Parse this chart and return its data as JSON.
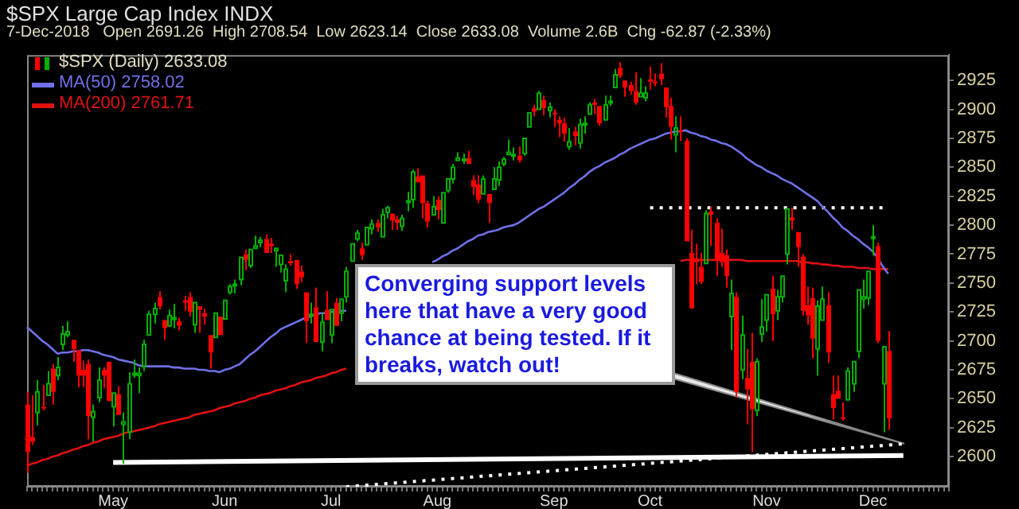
{
  "chart_data": {
    "type": "candlestick",
    "title": "$SPX Large Cap Index INDX",
    "subtitle": "7-Dec-2018   Open 2691.26  High 2708.54  Low 2623.14  Close 2633.08  Volume 2.6B  Chg -62.87 (-2.33%)",
    "annotations": [
      "Converging support levels here that have a very good chance at being tested. If it breaks, watch out!"
    ],
    "legend": "top left",
    "ylim": [
      2574,
      2947
    ],
    "yticks": [
      2600,
      2625,
      2650,
      2675,
      2700,
      2725,
      2750,
      2775,
      2800,
      2825,
      2850,
      2875,
      2900,
      2925
    ],
    "categories": [
      null,
      null,
      null,
      null,
      null,
      null,
      null,
      null,
      null,
      null,
      null,
      null,
      null,
      null,
      null,
      null,
      null,
      "May",
      null,
      null,
      null,
      null,
      null,
      null,
      null,
      null,
      null,
      null,
      null,
      null,
      null,
      null,
      null,
      null,
      null,
      null,
      null,
      null,
      null,
      "Jun",
      null,
      null,
      null,
      null,
      null,
      null,
      null,
      null,
      null,
      null,
      null,
      null,
      null,
      null,
      null,
      null,
      null,
      null,
      null,
      null,
      "Jul",
      null,
      null,
      null,
      null,
      null,
      null,
      null,
      null,
      null,
      null,
      null,
      null,
      null,
      null,
      null,
      null,
      null,
      null,
      null,
      null,
      "Aug",
      null,
      null,
      null,
      null,
      null,
      null,
      null,
      null,
      null,
      null,
      null,
      null,
      null,
      null,
      null,
      null,
      null,
      null,
      null,
      null,
      null,
      null,
      "Sep",
      null,
      null,
      null,
      null,
      null,
      null,
      null,
      null,
      null,
      null,
      null,
      null,
      null,
      null,
      null,
      null,
      null,
      null,
      "Oct",
      null,
      null,
      null,
      null,
      null,
      null,
      null,
      null,
      null,
      null,
      null,
      null,
      null,
      null,
      null,
      null,
      null,
      null,
      null,
      null,
      null,
      null,
      "Nov",
      null,
      null,
      null,
      null,
      null,
      null,
      null,
      null,
      null,
      null,
      null,
      null,
      null,
      null,
      null,
      null,
      null,
      null,
      null,
      null,
      "Dec",
      null,
      null,
      null,
      null,
      null,
      null,
      null,
      null,
      null,
      null,
      null,
      null,
      null,
      null,
      null
    ],
    "series": [
      {
        "name": "$SPX (Daily) 2633.08",
        "type": "candlestick",
        "ohlc": [
          [
            2645,
            2656,
            2586,
            2604
          ],
          [
            2617,
            2653,
            2610,
            2613
          ],
          [
            2638,
            2666,
            2627,
            2656
          ],
          [
            2643,
            2662,
            2640,
            2642
          ],
          [
            2653,
            2674,
            2652,
            2663
          ],
          [
            2676,
            2680,
            2645,
            2656
          ],
          [
            2670,
            2686,
            2666,
            2677
          ],
          [
            2697,
            2713,
            2692,
            2706
          ],
          [
            2705,
            2717,
            2703,
            2708
          ],
          [
            2701,
            2702,
            2682,
            2693
          ],
          [
            2692,
            2693,
            2660,
            2670
          ],
          [
            2675,
            2683,
            2660,
            2670
          ],
          [
            2680,
            2684,
            2615,
            2635
          ],
          [
            2634,
            2645,
            2613,
            2639
          ],
          [
            2651,
            2677,
            2647,
            2666
          ],
          [
            2675,
            2677,
            2659,
            2670
          ],
          [
            2682,
            2682,
            2648,
            2648
          ],
          [
            2643,
            2655,
            2626,
            2655
          ],
          [
            2654,
            2661,
            2636,
            2636
          ],
          [
            2628,
            2638,
            2594,
            2630
          ],
          [
            2621,
            2673,
            2615,
            2663
          ],
          [
            2671,
            2684,
            2668,
            2672
          ],
          [
            2670,
            2677,
            2655,
            2672
          ],
          [
            2678,
            2701,
            2674,
            2697
          ],
          [
            2705,
            2726,
            2705,
            2723
          ],
          [
            2723,
            2733,
            2715,
            2728
          ],
          [
            2738,
            2743,
            2727,
            2730
          ],
          [
            2718,
            2718,
            2701,
            2711
          ],
          [
            2713,
            2727,
            2712,
            2722
          ],
          [
            2720,
            2732,
            2711,
            2720
          ],
          [
            2717,
            2720,
            2709,
            2713
          ],
          [
            2735,
            2739,
            2726,
            2733
          ],
          [
            2738,
            2742,
            2721,
            2725
          ],
          [
            2714,
            2733,
            2707,
            2733
          ],
          [
            2730,
            2731,
            2707,
            2727
          ],
          [
            2724,
            2728,
            2714,
            2721
          ],
          [
            2705,
            2706,
            2676,
            2690
          ],
          [
            2703,
            2725,
            2703,
            2724
          ],
          [
            2721,
            2722,
            2704,
            2705
          ],
          [
            2719,
            2736,
            2719,
            2735
          ],
          [
            2742,
            2749,
            2740,
            2747
          ],
          [
            2749,
            2753,
            2741,
            2749
          ],
          [
            2753,
            2773,
            2748,
            2772
          ],
          [
            2775,
            2779,
            2761,
            2770
          ],
          [
            2765,
            2779,
            2763,
            2779
          ],
          [
            2780,
            2791,
            2780,
            2782
          ],
          [
            2785,
            2790,
            2781,
            2787
          ],
          [
            2788,
            2792,
            2775,
            2776
          ],
          [
            2784,
            2789,
            2776,
            2782
          ],
          [
            2778,
            2781,
            2764,
            2780
          ],
          [
            2766,
            2775,
            2759,
            2774
          ],
          [
            2752,
            2766,
            2742,
            2762
          ],
          [
            2769,
            2775,
            2765,
            2767
          ],
          [
            2770,
            2770,
            2745,
            2749
          ],
          [
            2760,
            2765,
            2751,
            2755
          ],
          [
            2742,
            2742,
            2698,
            2717
          ],
          [
            2722,
            2733,
            2715,
            2723
          ],
          [
            2729,
            2746,
            2699,
            2699
          ],
          [
            2699,
            2724,
            2691,
            2716
          ],
          [
            2727,
            2743,
            2718,
            2718
          ],
          [
            2705,
            2727,
            2698,
            2727
          ],
          [
            2733,
            2737,
            2713,
            2713
          ],
          [
            2724,
            2737,
            2717,
            2736
          ],
          [
            2738,
            2764,
            2733,
            2760
          ],
          [
            2769,
            2785,
            2768,
            2784
          ],
          [
            2788,
            2796,
            2786,
            2793
          ],
          [
            2780,
            2785,
            2770,
            2774
          ],
          [
            2783,
            2799,
            2783,
            2798
          ],
          [
            2797,
            2805,
            2792,
            2801
          ],
          [
            2802,
            2805,
            2794,
            2798
          ],
          [
            2790,
            2814,
            2789,
            2809
          ],
          [
            2811,
            2817,
            2806,
            2815
          ],
          [
            2810,
            2810,
            2796,
            2804
          ],
          [
            2805,
            2808,
            2796,
            2802
          ],
          [
            2799,
            2809,
            2795,
            2806
          ],
          [
            2820,
            2829,
            2812,
            2821
          ],
          [
            2822,
            2848,
            2815,
            2846
          ],
          [
            2842,
            2849,
            2836,
            2837
          ],
          [
            2843,
            2844,
            2806,
            2819
          ],
          [
            2819,
            2821,
            2798,
            2803
          ],
          [
            2809,
            2825,
            2808,
            2816
          ],
          [
            2822,
            2825,
            2805,
            2813
          ],
          [
            2802,
            2829,
            2801,
            2828
          ],
          [
            2830,
            2840,
            2828,
            2840
          ],
          [
            2840,
            2853,
            2836,
            2850
          ],
          [
            2856,
            2863,
            2855,
            2858
          ],
          [
            2856,
            2862,
            2853,
            2857
          ],
          [
            2858,
            2864,
            2852,
            2853
          ],
          [
            2839,
            2843,
            2826,
            2833
          ],
          [
            2835,
            2843,
            2819,
            2822
          ],
          [
            2827,
            2843,
            2826,
            2840
          ],
          [
            2827,
            2827,
            2802,
            2819
          ],
          [
            2831,
            2850,
            2831,
            2840
          ],
          [
            2839,
            2855,
            2834,
            2850
          ],
          [
            2853,
            2859,
            2851,
            2857
          ],
          [
            2861,
            2874,
            2860,
            2863
          ],
          [
            2860,
            2867,
            2856,
            2861
          ],
          [
            2860,
            2868,
            2854,
            2856
          ],
          [
            2862,
            2876,
            2860,
            2875
          ],
          [
            2885,
            2898,
            2885,
            2897
          ],
          [
            2901,
            2904,
            2894,
            2898
          ],
          [
            2900,
            2916,
            2899,
            2914
          ],
          [
            2908,
            2912,
            2895,
            2901
          ],
          [
            2899,
            2906,
            2893,
            2902
          ],
          [
            2897,
            2900,
            2885,
            2896
          ],
          [
            2891,
            2894,
            2876,
            2888
          ],
          [
            2888,
            2893,
            2872,
            2879
          ],
          [
            2868,
            2884,
            2865,
            2872
          ],
          [
            2881,
            2885,
            2869,
            2877
          ],
          [
            2871,
            2892,
            2866,
            2887
          ],
          [
            2888,
            2894,
            2879,
            2888
          ],
          [
            2896,
            2906,
            2896,
            2904
          ],
          [
            2906,
            2909,
            2896,
            2904
          ],
          [
            2903,
            2904,
            2886,
            2888
          ],
          [
            2891,
            2912,
            2890,
            2904
          ],
          [
            2906,
            2912,
            2903,
            2907
          ],
          [
            2919,
            2935,
            2919,
            2930
          ],
          [
            2936,
            2941,
            2927,
            2929
          ],
          [
            2925,
            2926,
            2911,
            2919
          ],
          [
            2921,
            2924,
            2913,
            2916
          ],
          [
            2916,
            2932,
            2904,
            2906
          ],
          [
            2911,
            2927,
            2910,
            2914
          ],
          [
            2910,
            2920,
            2907,
            2914
          ],
          [
            2926,
            2937,
            2917,
            2924
          ],
          [
            2924,
            2931,
            2920,
            2923
          ],
          [
            2931,
            2940,
            2921,
            2926
          ],
          [
            2919,
            2919,
            2893,
            2902
          ],
          [
            2903,
            2910,
            2874,
            2885
          ],
          [
            2878,
            2894,
            2863,
            2884
          ],
          [
            2882,
            2894,
            2873,
            2881
          ],
          [
            2873,
            2875,
            2785,
            2786
          ],
          [
            2776,
            2796,
            2727,
            2728
          ],
          [
            2771,
            2784,
            2749,
            2768
          ],
          [
            2764,
            2776,
            2749,
            2751
          ],
          [
            2767,
            2813,
            2767,
            2810
          ],
          [
            2812,
            2816,
            2782,
            2809
          ],
          [
            2802,
            2806,
            2756,
            2769
          ],
          [
            2776,
            2797,
            2764,
            2768
          ],
          [
            2774,
            2779,
            2746,
            2756
          ],
          [
            2721,
            2753,
            2692,
            2741
          ],
          [
            2738,
            2742,
            2651,
            2656
          ],
          [
            2675,
            2722,
            2667,
            2705
          ],
          [
            2668,
            2693,
            2628,
            2658
          ],
          [
            2682,
            2707,
            2604,
            2641
          ],
          [
            2640,
            2685,
            2635,
            2682
          ],
          [
            2706,
            2736,
            2699,
            2712
          ],
          [
            2718,
            2741,
            2708,
            2740
          ],
          [
            2745,
            2756,
            2700,
            2723
          ],
          [
            2726,
            2744,
            2718,
            2738
          ],
          [
            2738,
            2757,
            2733,
            2756
          ],
          [
            2775,
            2815,
            2766,
            2814
          ],
          [
            2806,
            2815,
            2796,
            2806
          ],
          [
            2794,
            2794,
            2764,
            2781
          ],
          [
            2773,
            2775,
            2722,
            2726
          ],
          [
            2731,
            2747,
            2714,
            2722
          ],
          [
            2737,
            2746,
            2685,
            2702
          ],
          [
            2693,
            2735,
            2670,
            2730
          ],
          [
            2718,
            2747,
            2717,
            2736
          ],
          [
            2731,
            2742,
            2681,
            2690
          ],
          [
            2654,
            2670,
            2632,
            2642
          ],
          [
            2657,
            2670,
            2649,
            2650
          ],
          [
            2634,
            2647,
            2631,
            2633
          ],
          [
            2649,
            2677,
            2649,
            2674
          ],
          [
            2663,
            2683,
            2656,
            2682
          ],
          [
            2691,
            2744,
            2685,
            2744
          ],
          [
            2736,
            2753,
            2728,
            2738
          ],
          [
            2737,
            2760,
            2731,
            2760
          ],
          [
            2790,
            2800,
            2774,
            2790
          ],
          [
            2782,
            2785,
            2698,
            2700
          ],
          [
            2663,
            2696,
            2621,
            2695
          ],
          [
            2691.26,
            2708.54,
            2623.14,
            2633.08
          ],
          null,
          null,
          null,
          null,
          null,
          null,
          null,
          null,
          null,
          null,
          null,
          null
        ],
        "colors": [
          "#ff0000",
          "#ff0000",
          "#00b000",
          "#ff0000",
          "#00b000",
          "#ff0000",
          "#00b000",
          "#00b000",
          "#00b000",
          "#ff0000",
          "#ff0000",
          "#ff0000",
          "#ff0000",
          "#00b000",
          "#00b000",
          "#ff0000",
          "#ff0000",
          "#00b000",
          "#ff0000",
          "#00b000",
          "#00b000",
          "#00b000",
          "#00b000",
          "#00b000",
          "#00b000",
          "#00b000",
          "#ff0000",
          "#ff0000",
          "#00b000",
          "#00b000",
          "#ff0000",
          "#ff0000",
          "#ff0000",
          "#00b000",
          "#ff0000",
          "#ff0000",
          "#ff0000",
          "#00b000",
          "#ff0000",
          "#00b000",
          "#00b000",
          "#00b000",
          "#00b000",
          "#ff0000",
          "#00b000",
          "#00b000",
          "#00b000",
          "#ff0000",
          "#ff0000",
          "#00b000",
          "#00b000",
          "#00b000",
          "#ff0000",
          "#ff0000",
          "#ff0000",
          "#ff0000",
          "#00b000",
          "#ff0000",
          "#00b000",
          "#ff0000",
          "#00b000",
          "#ff0000",
          "#00b000",
          "#00b000",
          "#00b000",
          "#00b000",
          "#ff0000",
          "#00b000",
          "#00b000",
          "#ff0000",
          "#00b000",
          "#00b000",
          "#ff0000",
          "#ff0000",
          "#00b000",
          "#00b000",
          "#00b000",
          "#ff0000",
          "#ff0000",
          "#ff0000",
          "#00b000",
          "#ff0000",
          "#00b000",
          "#00b000",
          "#00b000",
          "#00b000",
          "#00b000",
          "#ff0000",
          "#ff0000",
          "#ff0000",
          "#00b000",
          "#ff0000",
          "#00b000",
          "#00b000",
          "#00b000",
          "#00b000",
          "#00b000",
          "#ff0000",
          "#00b000",
          "#00b000",
          "#ff0000",
          "#00b000",
          "#ff0000",
          "#00b000",
          "#ff0000",
          "#ff0000",
          "#ff0000",
          "#00b000",
          "#ff0000",
          "#00b000",
          "#00b000",
          "#00b000",
          "#ff0000",
          "#ff0000",
          "#00b000",
          "#00b000",
          "#00b000",
          "#ff0000",
          "#ff0000",
          "#ff0000",
          "#ff0000",
          "#00b000",
          "#00b000",
          "#ff0000",
          "#ff0000",
          "#ff0000",
          "#ff0000",
          "#ff0000",
          "#00b000",
          "#ff0000",
          "#ff0000",
          "#ff0000",
          "#ff0000",
          "#ff0000",
          "#00b000",
          "#ff0000",
          "#ff0000",
          "#ff0000",
          "#ff0000",
          "#00b000",
          "#ff0000",
          "#00b000",
          "#ff0000",
          "#ff0000",
          "#00b000",
          "#00b000",
          "#00b000",
          "#ff0000",
          "#00b000",
          "#00b000",
          "#00b000",
          "#ff0000",
          "#ff0000",
          "#ff0000",
          "#ff0000",
          "#ff0000",
          "#00b000",
          "#00b000",
          "#ff0000",
          "#ff0000",
          "#ff0000",
          "#ff0000",
          "#00b000",
          "#00b000",
          "#00b000",
          "#00b000",
          "#00b000",
          "#00b000",
          "#ff0000",
          "#00b000",
          "#ff0000",
          null,
          null,
          null,
          null,
          null,
          null,
          null,
          null,
          null,
          null,
          null,
          null
        ]
      },
      {
        "name": "MA(50) 2758.02",
        "type": "line",
        "color": "#7070e8",
        "values": [
          2712,
          2708,
          2704,
          2700,
          2697,
          2693,
          2689,
          2690,
          2690,
          2691,
          2691,
          2692,
          2692,
          2691,
          2690,
          2688,
          2687,
          2686,
          2684,
          2683,
          2682,
          2681,
          2679,
          2678,
          2678,
          2678,
          2678,
          2678,
          2678,
          2677,
          2677,
          2676,
          2676,
          2676,
          2675,
          2675,
          2674,
          2674,
          2673,
          2675,
          2676,
          2678,
          2680,
          2684,
          2688,
          2691,
          2695,
          2699,
          2703,
          2706,
          2710,
          2712,
          2714,
          2716,
          2718,
          2720,
          2721,
          2723,
          2724,
          2724,
          2725,
          2725,
          2726,
          2726,
          null,
          null,
          null,
          null,
          null,
          null,
          null,
          null,
          null,
          null,
          null,
          null,
          null,
          null,
          null,
          null,
          2768,
          2770,
          2773,
          2775,
          2778,
          2780,
          2783,
          2786,
          2788,
          2791,
          2792,
          2794,
          2795,
          2796,
          2798,
          2799,
          2800,
          2802,
          2805,
          2808,
          2811,
          2814,
          2816,
          2819,
          2822,
          2825,
          2828,
          2832,
          2835,
          2839,
          2842,
          2846,
          2849,
          2851,
          2854,
          2856,
          2858,
          2861,
          2863,
          2866,
          2868,
          2870,
          2872,
          2874,
          2875,
          2877,
          2879,
          2880,
          2881,
          2881,
          2882,
          2880,
          2879,
          2877,
          2876,
          2874,
          2873,
          2871,
          2870,
          2868,
          2865,
          2862,
          2858,
          2855,
          2852,
          2850,
          2847,
          2845,
          2843,
          2840,
          2838,
          2836,
          2833,
          2830,
          2827,
          2824,
          2821,
          2816,
          2812,
          2807,
          2803,
          2798,
          2795,
          2791,
          2788,
          2784,
          2781,
          2777,
          2771,
          2764,
          2758,
          null,
          null,
          null,
          null,
          null,
          null,
          null,
          null,
          null,
          null,
          null,
          null
        ]
      },
      {
        "name": "MA(200) 2761.71",
        "type": "line",
        "color": "#e01010",
        "values": [
          2592,
          2594,
          2595,
          2597,
          2598,
          2600,
          2601,
          2603,
          2604,
          2606,
          2607,
          2609,
          2610,
          2612,
          2613,
          2615,
          2616,
          2617,
          2618,
          2620,
          2621,
          2622,
          2623,
          2624,
          2625,
          2626,
          2628,
          2629,
          2630,
          2631,
          2632,
          2633,
          2634,
          2636,
          2637,
          2638,
          2639,
          2640,
          2642,
          2643,
          2644,
          2646,
          2647,
          2648,
          2650,
          2651,
          2653,
          2654,
          2655,
          2657,
          2658,
          2659,
          2661,
          2662,
          2664,
          2665,
          2666,
          2668,
          2669,
          2670,
          2672,
          2673,
          2675,
          2676,
          null,
          null,
          null,
          null,
          null,
          null,
          null,
          null,
          null,
          null,
          null,
          null,
          null,
          null,
          null,
          null,
          null,
          null,
          null,
          null,
          null,
          null,
          null,
          null,
          null,
          null,
          null,
          null,
          null,
          null,
          null,
          null,
          null,
          null,
          null,
          null,
          null,
          null,
          null,
          null,
          null,
          null,
          null,
          null,
          null,
          null,
          null,
          null,
          null,
          null,
          null,
          null,
          null,
          null,
          null,
          null,
          null,
          null,
          null,
          null,
          null,
          null,
          null,
          null,
          null,
          2769,
          2770,
          2770,
          2770,
          2770,
          2770,
          2770,
          2770,
          2770,
          2770,
          2770,
          2770,
          2770,
          2769,
          2769,
          2769,
          2769,
          2769,
          2769,
          2769,
          2769,
          2769,
          2769,
          2769,
          2768,
          2768,
          2767,
          2767,
          2766,
          2766,
          2765,
          2765,
          2764,
          2764,
          2764,
          2763,
          2763,
          2763,
          2762,
          2762,
          2762,
          2762,
          null,
          null,
          null,
          null,
          null,
          null,
          null,
          null,
          null,
          null,
          null,
          null
        ]
      },
      {
        "type": "line",
        "color": "#ffffff",
        "line_style": "dotted",
        "values": [
          null,
          null,
          null,
          null,
          null,
          null,
          null,
          null,
          null,
          null,
          null,
          null,
          null,
          null,
          null,
          null,
          null,
          null,
          null,
          null,
          null,
          null,
          null,
          null,
          null,
          null,
          null,
          null,
          null,
          null,
          null,
          null,
          null,
          null,
          null,
          null,
          null,
          null,
          null,
          null,
          null,
          null,
          null,
          null,
          null,
          null,
          null,
          null,
          null,
          null,
          null,
          null,
          null,
          null,
          null,
          null,
          null,
          null,
          null,
          null,
          null,
          null,
          null,
          null,
          null,
          null,
          null,
          null,
          null,
          null,
          null,
          null,
          null,
          null,
          null,
          null,
          null,
          null,
          null,
          null,
          null,
          null,
          null,
          null,
          null,
          null,
          null,
          null,
          null,
          null,
          null,
          null,
          null,
          null,
          null,
          null,
          null,
          null,
          null,
          null,
          null,
          null,
          null,
          null,
          null,
          null,
          null,
          null,
          null,
          null,
          null,
          null,
          null,
          null,
          null,
          null,
          null,
          null,
          null,
          null,
          null,
          null,
          null,
          2815,
          null,
          null,
          null,
          null,
          null,
          null,
          null,
          null,
          null,
          null,
          null,
          null,
          null,
          null,
          null,
          null,
          null,
          null,
          null,
          null,
          null,
          null,
          null,
          null,
          null,
          null,
          null,
          null,
          null,
          null,
          null,
          null,
          null,
          null,
          null,
          null,
          null,
          null,
          null,
          null,
          null,
          null,
          null,
          null,
          null,
          2815,
          null,
          null,
          null,
          null,
          null,
          null,
          null,
          null,
          null,
          null,
          null,
          null,
          null
        ]
      },
      {
        "type": "line",
        "color": "#ffffff",
        "line_style": "solid",
        "values": [
          null,
          null,
          null,
          null,
          null,
          null,
          null,
          null,
          null,
          null,
          null,
          null,
          null,
          null,
          null,
          null,
          null,
          2595,
          null,
          null,
          null,
          null,
          null,
          null,
          null,
          null,
          null,
          null,
          null,
          null,
          null,
          null,
          null,
          null,
          null,
          null,
          null,
          null,
          null,
          null,
          null,
          null,
          null,
          null,
          null,
          null,
          null,
          null,
          null,
          null,
          null,
          null,
          null,
          null,
          null,
          null,
          null,
          null,
          null,
          null,
          null,
          null,
          null,
          null,
          null,
          null,
          null,
          null,
          null,
          null,
          null,
          null,
          null,
          null,
          null,
          null,
          null,
          null,
          null,
          null,
          null,
          null,
          null,
          null,
          null,
          null,
          null,
          null,
          null,
          null,
          null,
          null,
          null,
          null,
          null,
          null,
          null,
          null,
          null,
          null,
          null,
          null,
          null,
          null,
          null,
          null,
          null,
          null,
          null,
          null,
          null,
          null,
          null,
          null,
          null,
          null,
          null,
          null,
          null,
          null,
          null,
          null,
          null,
          null,
          null,
          null,
          null,
          null,
          null,
          null,
          null,
          null,
          null,
          null,
          null,
          null,
          null,
          null,
          null,
          null,
          null,
          null,
          null,
          null,
          null,
          null,
          null,
          null,
          null,
          null,
          null,
          null,
          null,
          null,
          null,
          null,
          null,
          null,
          null,
          null,
          null,
          null,
          null,
          null,
          null,
          null,
          null,
          null,
          null,
          null,
          null,
          null,
          null,
          2601,
          null,
          null,
          null,
          null,
          null,
          null,
          null,
          null,
          null
        ]
      },
      {
        "type": "line",
        "color": "#ffffff",
        "line_style": "dotted",
        "values": [
          null,
          null,
          null,
          null,
          null,
          null,
          null,
          null,
          null,
          null,
          null,
          null,
          null,
          null,
          null,
          null,
          null,
          null,
          null,
          null,
          null,
          null,
          null,
          null,
          null,
          null,
          null,
          null,
          null,
          null,
          null,
          null,
          null,
          null,
          null,
          null,
          null,
          null,
          null,
          null,
          null,
          null,
          null,
          null,
          null,
          null,
          null,
          null,
          null,
          null,
          null,
          null,
          null,
          null,
          null,
          null,
          null,
          null,
          null,
          null,
          null,
          null,
          null,
          2574,
          null,
          null,
          null,
          null,
          null,
          null,
          null,
          null,
          null,
          null,
          null,
          null,
          null,
          null,
          null,
          null,
          null,
          null,
          null,
          null,
          null,
          null,
          null,
          null,
          null,
          null,
          null,
          null,
          null,
          null,
          null,
          null,
          null,
          null,
          null,
          null,
          null,
          null,
          null,
          null,
          null,
          null,
          null,
          null,
          null,
          null,
          null,
          null,
          null,
          null,
          null,
          null,
          null,
          null,
          null,
          null,
          null,
          null,
          null,
          null,
          null,
          null,
          null,
          null,
          null,
          null,
          null,
          null,
          null,
          null,
          null,
          null,
          null,
          null,
          null,
          null,
          null,
          null,
          null,
          null,
          null,
          null,
          null,
          null,
          null,
          null,
          null,
          null,
          null,
          null,
          null,
          null,
          null,
          null,
          null,
          null,
          null,
          null,
          null,
          null,
          null,
          null,
          null,
          null,
          null,
          null,
          null,
          null,
          null,
          2611,
          null,
          null,
          null,
          null,
          null,
          null,
          null,
          null,
          null
        ]
      }
    ]
  }
}
